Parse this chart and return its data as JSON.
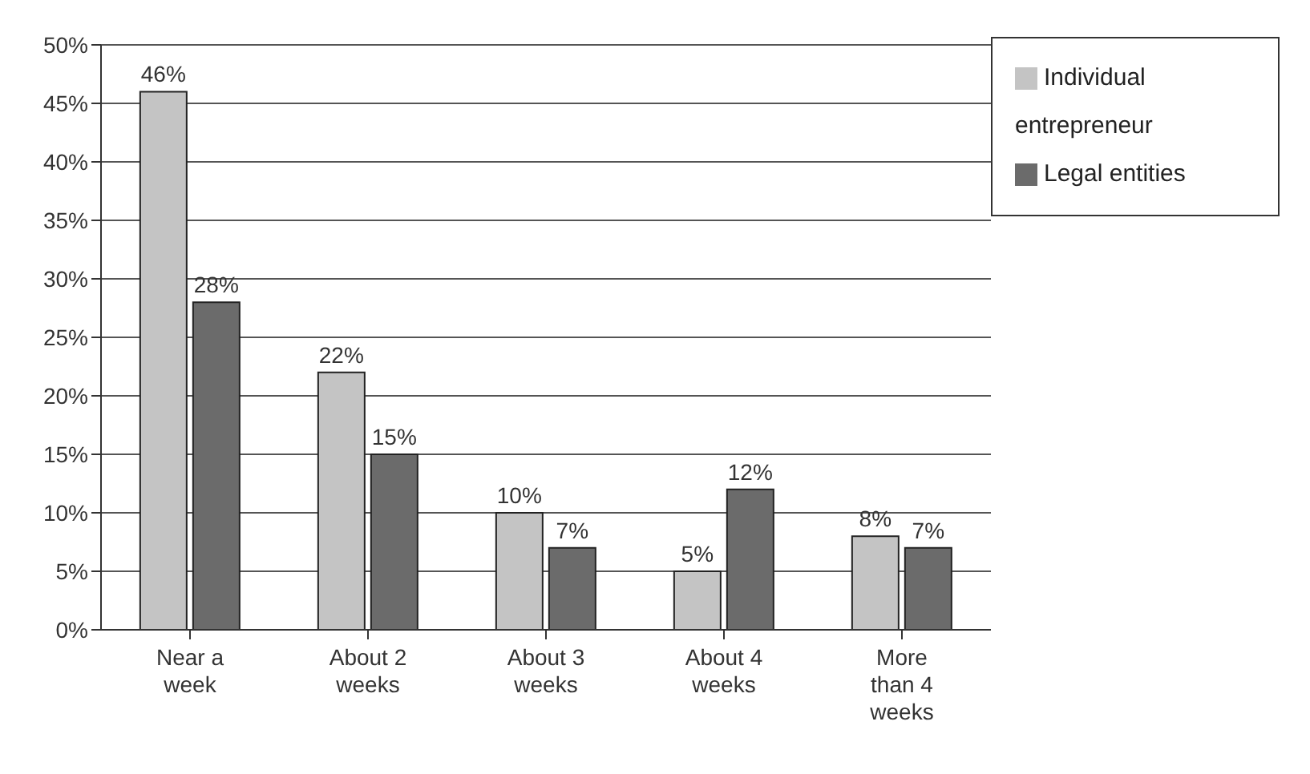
{
  "chart_data": {
    "type": "bar",
    "categories": [
      "Near a week",
      "About 2 weeks",
      "About 3 weeks",
      "About 4 weeks",
      "More than 4 weeks"
    ],
    "series": [
      {
        "name": "Individual entrepreneur",
        "color": "#c4c4c4",
        "values": [
          46,
          22,
          10,
          5,
          8
        ],
        "value_labels": [
          "46%",
          "22%",
          "10%",
          "5%",
          "8%"
        ]
      },
      {
        "name": "Legal entities",
        "color": "#6b6b6b",
        "values": [
          28,
          15,
          7,
          12,
          7
        ],
        "value_labels": [
          "28%",
          "15%",
          "7%",
          "12%",
          "7%"
        ]
      }
    ],
    "ylim": [
      0,
      50
    ],
    "yticks": [
      {
        "value": 0,
        "label": "0%"
      },
      {
        "value": 5,
        "label": "5%"
      },
      {
        "value": 10,
        "label": "10%"
      },
      {
        "value": 15,
        "label": "15%"
      },
      {
        "value": 20,
        "label": "20%"
      },
      {
        "value": 25,
        "label": "25%"
      },
      {
        "value": 30,
        "label": "30%"
      },
      {
        "value": 35,
        "label": "35%"
      },
      {
        "value": 40,
        "label": "40%"
      },
      {
        "value": 45,
        "label": "45%"
      },
      {
        "value": 50,
        "label": "50%"
      }
    ],
    "grid": "y",
    "legend": "top right"
  }
}
